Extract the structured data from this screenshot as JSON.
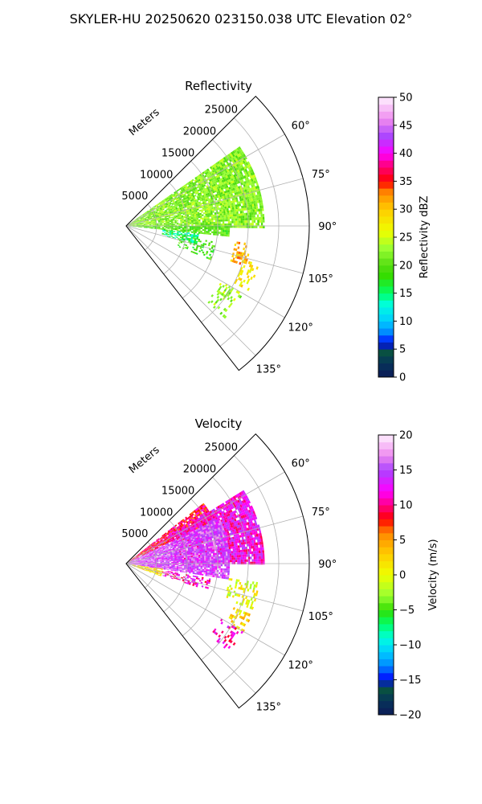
{
  "figure": {
    "suptitle": "SKYLER-HU  20250620  023150.038 UTC Elevation 02°"
  },
  "chart_data": [
    {
      "type": "heatmap",
      "title": "Reflectivity",
      "projection": "polar-sector",
      "radial_label": "Meters",
      "radial_ticks": [
        5000,
        10000,
        15000,
        20000,
        25000
      ],
      "radial_tick_labels": [
        "5000",
        "10000",
        "15000",
        "20000",
        "25000"
      ],
      "rlim": [
        0,
        30000
      ],
      "azimuth_ticks": [
        60,
        75,
        90,
        105,
        120,
        135
      ],
      "azimuth_tick_labels": [
        "60°",
        "75°",
        "90°",
        "105°",
        "120°",
        "135°"
      ],
      "azimuth_range": [
        45,
        142
      ],
      "grid": true,
      "colorbar": {
        "label": "Reflectivity dBZ",
        "ticks": [
          0,
          5,
          10,
          15,
          20,
          25,
          30,
          35,
          40,
          45,
          50
        ],
        "tick_labels": [
          "0",
          "5",
          "10",
          "15",
          "20",
          "25",
          "30",
          "35",
          "40",
          "45",
          "50"
        ],
        "range": [
          0,
          50
        ],
        "stops": [
          {
            "v": 0,
            "c": "#0c1b57"
          },
          {
            "v": 2.5,
            "c": "#06335a"
          },
          {
            "v": 5,
            "c": "#0a5a3a"
          },
          {
            "v": 6,
            "c": "#0000ff"
          },
          {
            "v": 8,
            "c": "#0088ff"
          },
          {
            "v": 10,
            "c": "#00ccff"
          },
          {
            "v": 13,
            "c": "#00ffdd"
          },
          {
            "v": 15,
            "c": "#00ff66"
          },
          {
            "v": 18,
            "c": "#33dd00"
          },
          {
            "v": 20,
            "c": "#55dd11"
          },
          {
            "v": 23,
            "c": "#99ff33"
          },
          {
            "v": 26,
            "c": "#eeff00"
          },
          {
            "v": 30,
            "c": "#ffcc00"
          },
          {
            "v": 33,
            "c": "#ff8800"
          },
          {
            "v": 35,
            "c": "#ff0000"
          },
          {
            "v": 38,
            "c": "#ff0088"
          },
          {
            "v": 40,
            "c": "#ff00ff"
          },
          {
            "v": 43,
            "c": "#aa44ff"
          },
          {
            "v": 46,
            "c": "#ee88ee"
          },
          {
            "v": 50,
            "c": "#fff0ff"
          }
        ]
      },
      "field_regions": [
        {
          "az": [
            55,
            90
          ],
          "r": [
            500,
            22500
          ],
          "value": 22,
          "density": 0.9
        },
        {
          "az": [
            90,
            96
          ],
          "r": [
            500,
            17000
          ],
          "value": 20,
          "density": 0.85
        },
        {
          "az": [
            96,
            104
          ],
          "r": [
            6000,
            12000
          ],
          "value": 15,
          "density": 0.7
        },
        {
          "az": [
            100,
            112
          ],
          "r": [
            9000,
            15000
          ],
          "value": 19,
          "density": 0.35
        },
        {
          "az": [
            98,
            108
          ],
          "r": [
            18000,
            20500
          ],
          "value": 31,
          "density": 0.4
        },
        {
          "az": [
            106,
            118
          ],
          "r": [
            20000,
            22500
          ],
          "value": 28,
          "density": 0.35
        },
        {
          "az": [
            120,
            132
          ],
          "r": [
            18000,
            22000
          ],
          "value": 23,
          "density": 0.3
        }
      ]
    },
    {
      "type": "heatmap",
      "title": "Velocity",
      "projection": "polar-sector",
      "radial_label": "Meters",
      "radial_ticks": [
        5000,
        10000,
        15000,
        20000,
        25000
      ],
      "radial_tick_labels": [
        "5000",
        "10000",
        "15000",
        "20000",
        "25000"
      ],
      "rlim": [
        0,
        30000
      ],
      "azimuth_ticks": [
        60,
        75,
        90,
        105,
        120,
        135
      ],
      "azimuth_tick_labels": [
        "60°",
        "75°",
        "90°",
        "105°",
        "120°",
        "135°"
      ],
      "azimuth_range": [
        45,
        142
      ],
      "grid": true,
      "colorbar": {
        "label": "Velocity (m/s)",
        "ticks": [
          -20,
          -15,
          -10,
          -5,
          0,
          5,
          10,
          15,
          20
        ],
        "tick_labels": [
          "−20",
          "−15",
          "−10",
          "−5",
          "0",
          "5",
          "10",
          "15",
          "20"
        ],
        "range": [
          -20,
          20
        ],
        "stops": [
          {
            "v": -20,
            "c": "#0c1b57"
          },
          {
            "v": -18,
            "c": "#06335a"
          },
          {
            "v": -16,
            "c": "#0a5a3a"
          },
          {
            "v": -15,
            "c": "#0000ff"
          },
          {
            "v": -13,
            "c": "#0088ff"
          },
          {
            "v": -11,
            "c": "#00ccff"
          },
          {
            "v": -9,
            "c": "#00ffdd"
          },
          {
            "v": -7,
            "c": "#00ff66"
          },
          {
            "v": -5,
            "c": "#33dd00"
          },
          {
            "v": -3,
            "c": "#99ff33"
          },
          {
            "v": 0,
            "c": "#eeff00"
          },
          {
            "v": 3,
            "c": "#ffcc00"
          },
          {
            "v": 6,
            "c": "#ff8800"
          },
          {
            "v": 8,
            "c": "#ff0000"
          },
          {
            "v": 10,
            "c": "#ff0088"
          },
          {
            "v": 12,
            "c": "#ff00ff"
          },
          {
            "v": 15,
            "c": "#aa44ff"
          },
          {
            "v": 17,
            "c": "#ee88ee"
          },
          {
            "v": 20,
            "c": "#fff0ff"
          }
        ]
      },
      "field_regions": [
        {
          "az": [
            52,
            64
          ],
          "r": [
            500,
            16000
          ],
          "value": 9,
          "density": 0.9
        },
        {
          "az": [
            58,
            90
          ],
          "r": [
            8000,
            22500
          ],
          "value": 12,
          "density": 0.9
        },
        {
          "az": [
            64,
            98
          ],
          "r": [
            500,
            17000
          ],
          "value": 15,
          "density": 0.9
        },
        {
          "az": [
            98,
            110
          ],
          "r": [
            1000,
            6000
          ],
          "value": 2,
          "density": 0.8
        },
        {
          "az": [
            100,
            108
          ],
          "r": [
            6000,
            14000
          ],
          "value": 11,
          "density": 0.5
        },
        {
          "az": [
            98,
            110
          ],
          "r": [
            17000,
            22000
          ],
          "value": 0,
          "density": 0.4
        },
        {
          "az": [
            112,
            120
          ],
          "r": [
            19000,
            22500
          ],
          "value": 2,
          "density": 0.35
        },
        {
          "az": [
            120,
            130
          ],
          "r": [
            18000,
            22000
          ],
          "value": 11,
          "density": 0.3
        }
      ]
    }
  ]
}
